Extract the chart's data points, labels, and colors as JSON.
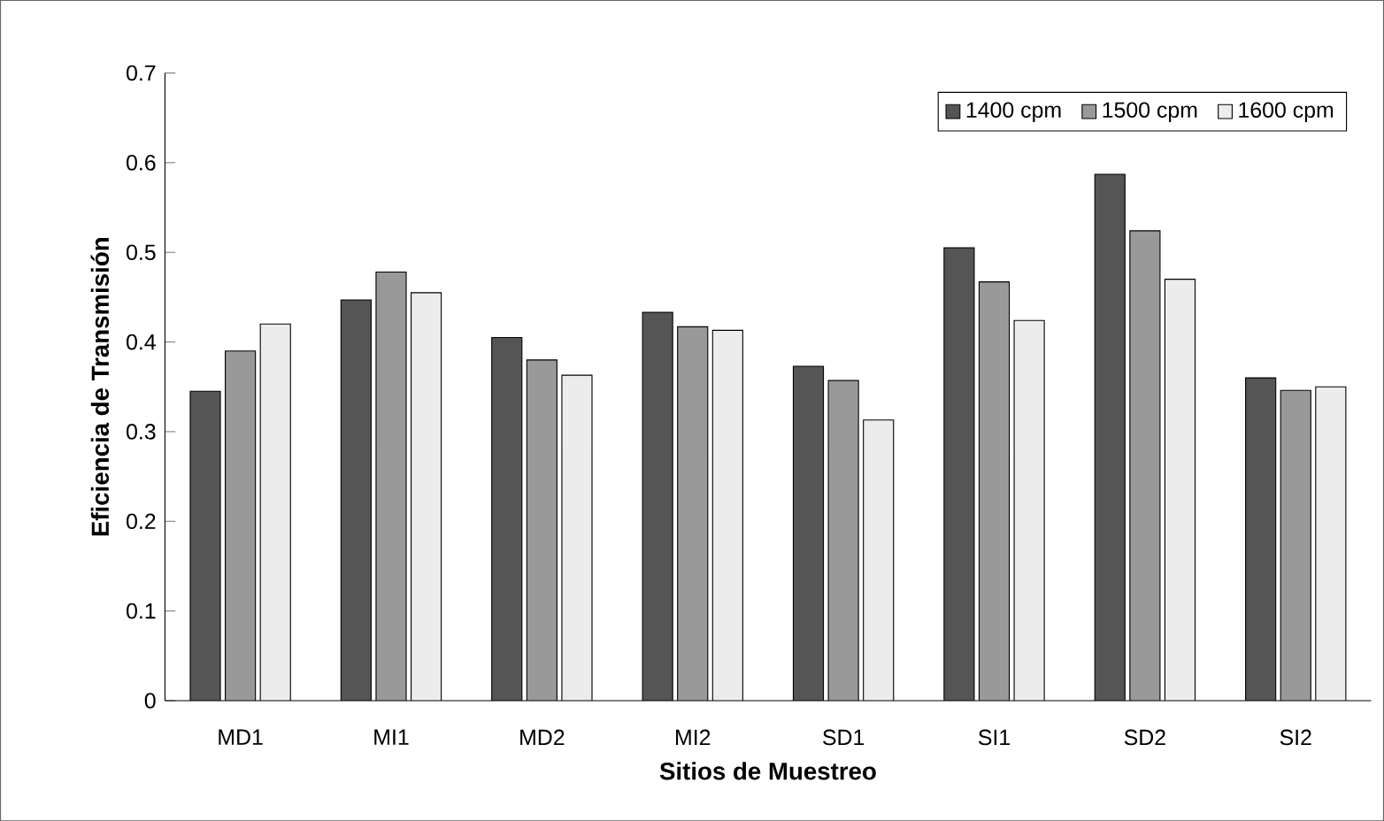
{
  "chart_data": {
    "type": "bar",
    "xlabel": "Sitios de Muestreo",
    "ylabel": "Eficiencia de Transmisión",
    "categories": [
      "MD1",
      "MI1",
      "MD2",
      "MI2",
      "SD1",
      "SI1",
      "SD2",
      "SI2"
    ],
    "series": [
      {
        "name": "1400 cpm",
        "color": "#555555",
        "values": [
          0.345,
          0.447,
          0.405,
          0.433,
          0.373,
          0.505,
          0.587,
          0.36
        ]
      },
      {
        "name": "1500 cpm",
        "color": "#999999",
        "values": [
          0.39,
          0.478,
          0.38,
          0.417,
          0.357,
          0.467,
          0.524,
          0.346
        ]
      },
      {
        "name": "1600 cpm",
        "color": "#ececec",
        "values": [
          0.42,
          0.455,
          0.363,
          0.413,
          0.313,
          0.424,
          0.47,
          0.35
        ]
      }
    ],
    "ylim": [
      0,
      0.7
    ],
    "yticks": [
      0,
      0.1,
      0.2,
      0.3,
      0.4,
      0.5,
      0.6,
      0.7
    ],
    "grid": false,
    "legend": "top right"
  }
}
